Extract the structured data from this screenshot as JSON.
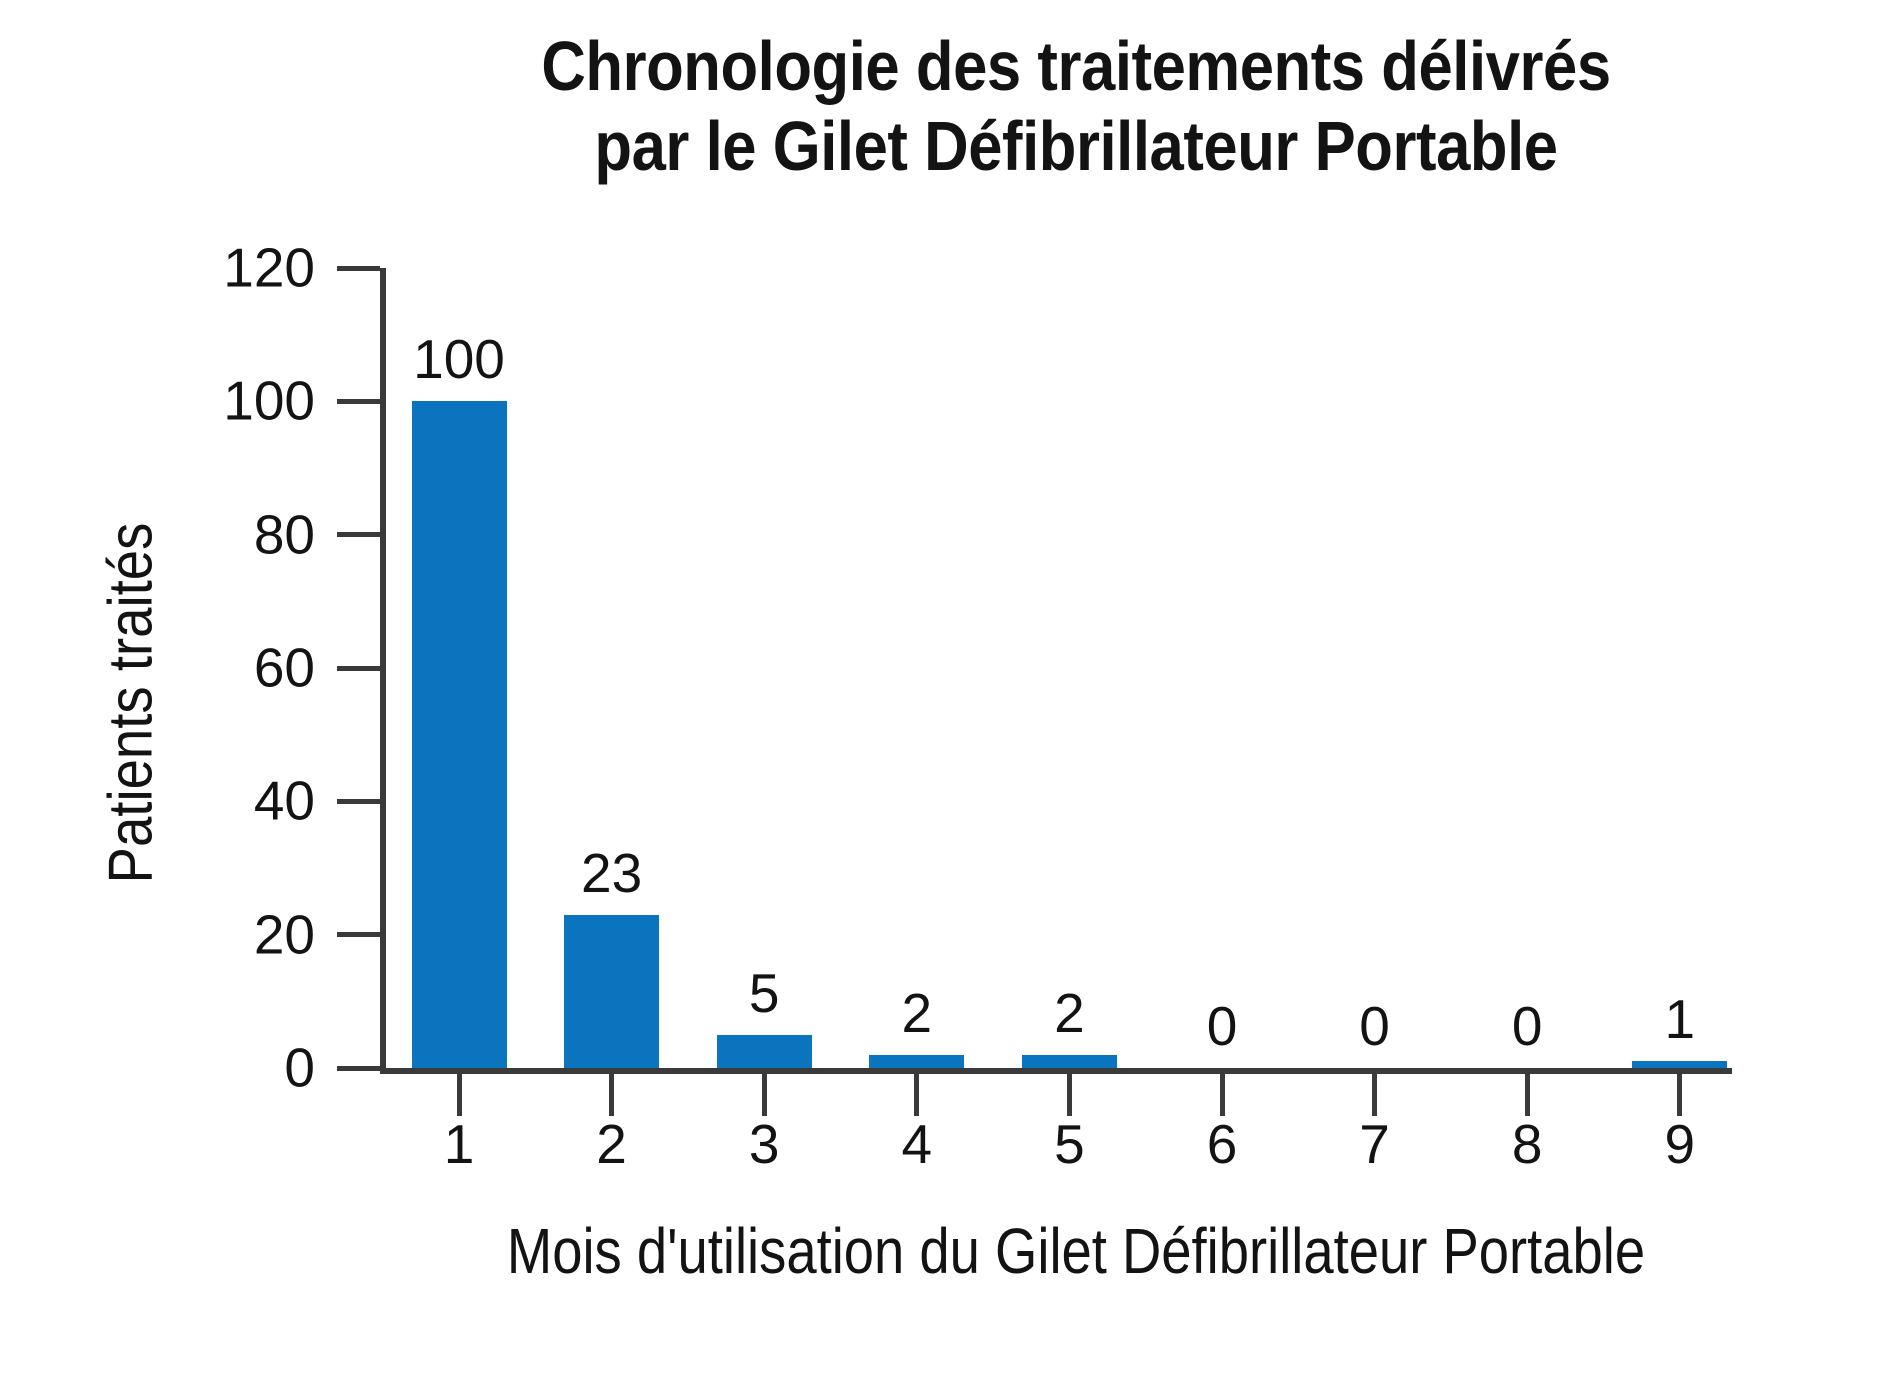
{
  "chart_data": {
    "type": "bar",
    "title": "Chronologie des traitements délivrés par le Gilet Défibrillateur Portable",
    "title_lines": [
      "Chronologie des traitements délivrés",
      "par le Gilet Défibrillateur Portable"
    ],
    "xlabel": "Mois d'utilisation du Gilet Défibrillateur Portable",
    "ylabel": "Patients traités",
    "categories": [
      "1",
      "2",
      "3",
      "4",
      "5",
      "6",
      "7",
      "8",
      "9"
    ],
    "values": [
      100,
      23,
      5,
      2,
      2,
      0,
      0,
      0,
      1
    ],
    "bar_value_labels": [
      "100",
      "23",
      "5",
      "2",
      "2",
      "0",
      "0",
      "0",
      "1"
    ],
    "yticks": [
      0,
      20,
      40,
      60,
      80,
      100,
      120
    ],
    "ylim": [
      0,
      120
    ],
    "grid": false,
    "legend": "none",
    "colors": {
      "bar": "#0B74BE",
      "axis": "#3A3A3A",
      "text": "#131313",
      "background": "#FFFFFF"
    }
  }
}
